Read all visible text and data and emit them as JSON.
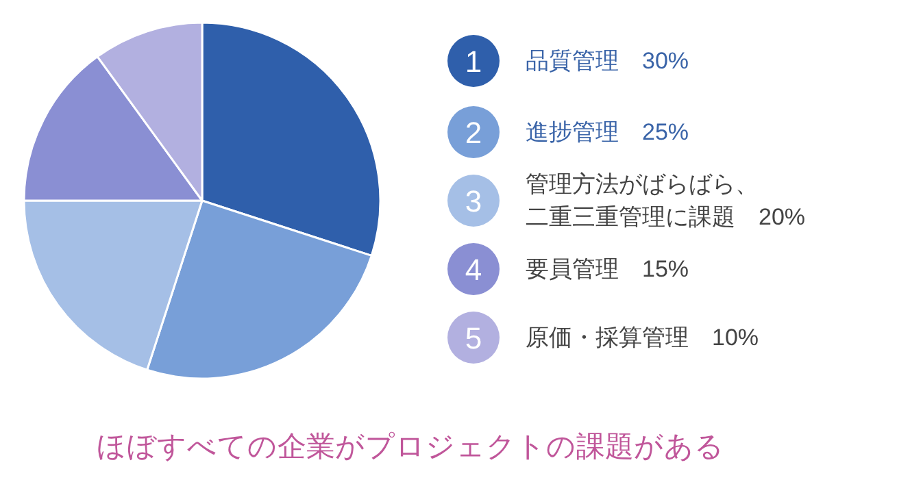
{
  "chart_data": {
    "type": "pie",
    "categories": [
      "品質管理",
      "進捗管理",
      "管理方法がばらばら、二重三重管理に課題",
      "要員管理",
      "原価・採算管理"
    ],
    "values": [
      30,
      25,
      20,
      15,
      10
    ],
    "colors": [
      "#2f5fab",
      "#789fd8",
      "#a5bfe6",
      "#8a8fd3",
      "#b2b0e0"
    ],
    "value_labels": [
      "30%",
      "25%",
      "20%",
      "15%",
      "10%"
    ],
    "legend": "right",
    "annotations": [
      "ほぼすべての企業がプロジェクトの課題がある",
      "1",
      "2",
      "3",
      "4",
      "5"
    ]
  }
}
